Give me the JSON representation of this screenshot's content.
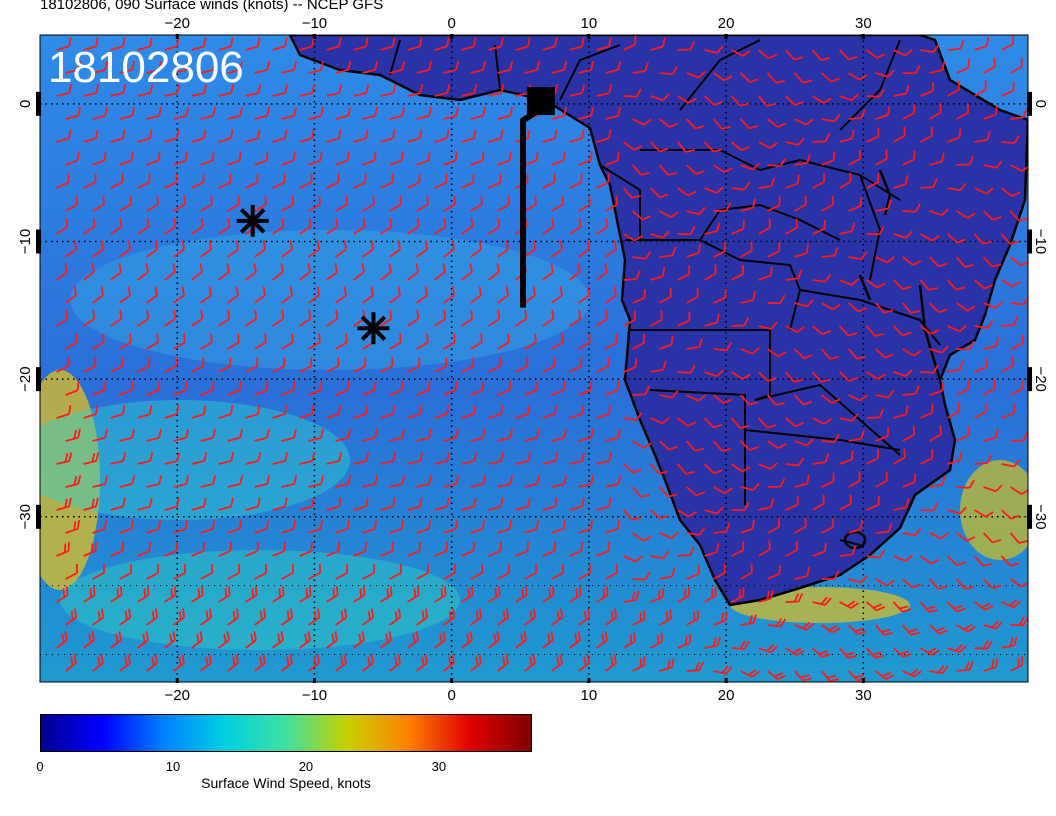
{
  "title": "18102806, 090 Surface winds (knots) -- NCEP GFS",
  "stamp": "18102806",
  "map": {
    "lon_range": [
      -30,
      42
    ],
    "lat_range": [
      -42,
      5
    ],
    "lon_ticks": [
      {
        "value": -20,
        "label": "−20"
      },
      {
        "value": -10,
        "label": "−10"
      },
      {
        "value": 0,
        "label": "0"
      },
      {
        "value": 10,
        "label": "10"
      },
      {
        "value": 20,
        "label": "20"
      },
      {
        "value": 30,
        "label": "30"
      }
    ],
    "lat_ticks": [
      {
        "value": 0,
        "label": "0"
      },
      {
        "value": -10,
        "label": "−10"
      },
      {
        "value": -20,
        "label": "−20"
      },
      {
        "value": -30,
        "label": "−30"
      }
    ],
    "markers": [
      {
        "type": "asterisk",
        "lon": -14.5,
        "lat": -8.5
      },
      {
        "type": "asterisk",
        "lon": -5.7,
        "lat": -16.3
      },
      {
        "type": "square",
        "lon": 6.5,
        "lat": 0.2
      }
    ],
    "track_line": [
      [
        5.2,
        -14.8
      ],
      [
        5.2,
        -1.2
      ],
      [
        6.3,
        -0.5
      ]
    ],
    "land_color": "#2e3aaa",
    "ocean_color": "#2f7fe0",
    "barb_color": "#ff1a1a"
  },
  "colorbar": {
    "title": "Surface Wind Speed, knots",
    "min": 0,
    "max": 37,
    "tick_labels": [
      {
        "value": 0,
        "label": "0"
      },
      {
        "value": 10,
        "label": "10"
      },
      {
        "value": 20,
        "label": "20"
      },
      {
        "value": 30,
        "label": "30"
      }
    ],
    "colors": [
      "#00008f",
      "#0000ff",
      "#0080ff",
      "#00d0e0",
      "#40e0a0",
      "#c8d000",
      "#ff8000",
      "#e00000",
      "#800000"
    ]
  }
}
